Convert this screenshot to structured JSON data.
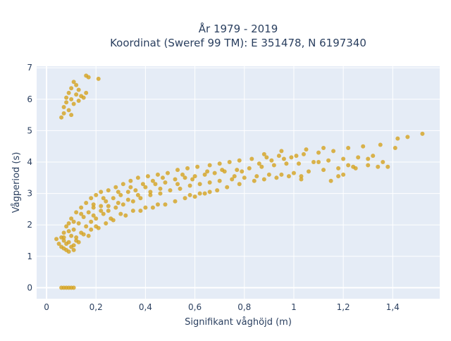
{
  "chart_data": {
    "type": "scatter",
    "title": "År 1979 - 2019",
    "subtitle": "Koordinat (Sweref 99 TM): E 351478, N 6197340",
    "xlabel": "Signifikant våghöjd (m)",
    "ylabel": "Vågperiod (s)",
    "xlim": [
      -0.04,
      1.59
    ],
    "ylim": [
      -0.35,
      7.05
    ],
    "grid": true,
    "x_ticks": [
      0,
      0.2,
      0.4,
      0.6,
      0.8,
      1.0,
      1.2,
      1.4
    ],
    "x_tick_labels": [
      "0",
      "0,2",
      "0,4",
      "0,6",
      "0,8",
      "1",
      "1,2",
      "1,4"
    ],
    "y_ticks": [
      0,
      1,
      2,
      3,
      4,
      5,
      6,
      7
    ],
    "y_tick_labels": [
      "0",
      "1",
      "2",
      "3",
      "4",
      "5",
      "6",
      "7"
    ],
    "marker_color": "#d4a21f",
    "plot_background": "#e5ecf6",
    "series": [
      {
        "points": [
          [
            0.06,
            0.0
          ],
          [
            0.07,
            0.0
          ],
          [
            0.08,
            0.0
          ],
          [
            0.09,
            0.0
          ],
          [
            0.1,
            0.0
          ],
          [
            0.11,
            0.0
          ],
          [
            0.06,
            5.42
          ],
          [
            0.07,
            5.55
          ],
          [
            0.07,
            5.75
          ],
          [
            0.08,
            5.9
          ],
          [
            0.08,
            6.05
          ],
          [
            0.09,
            5.65
          ],
          [
            0.09,
            6.2
          ],
          [
            0.1,
            6.0
          ],
          [
            0.1,
            6.35
          ],
          [
            0.11,
            6.55
          ],
          [
            0.11,
            5.85
          ],
          [
            0.12,
            6.15
          ],
          [
            0.12,
            6.45
          ],
          [
            0.13,
            6.3
          ],
          [
            0.14,
            6.1
          ],
          [
            0.15,
            6.05
          ],
          [
            0.16,
            6.2
          ],
          [
            0.16,
            6.75
          ],
          [
            0.17,
            6.7
          ],
          [
            0.21,
            6.65
          ],
          [
            0.13,
            5.95
          ],
          [
            0.1,
            5.5
          ],
          [
            0.04,
            1.55
          ],
          [
            0.05,
            1.4
          ],
          [
            0.06,
            1.3
          ],
          [
            0.06,
            1.6
          ],
          [
            0.07,
            1.5
          ],
          [
            0.07,
            1.75
          ],
          [
            0.08,
            1.2
          ],
          [
            0.08,
            1.95
          ],
          [
            0.09,
            1.45
          ],
          [
            0.09,
            2.05
          ],
          [
            0.1,
            1.65
          ],
          [
            0.1,
            2.2
          ],
          [
            0.11,
            1.35
          ],
          [
            0.11,
            1.85
          ],
          [
            0.12,
            2.4
          ],
          [
            0.12,
            1.6
          ],
          [
            0.13,
            2.05
          ],
          [
            0.14,
            2.55
          ],
          [
            0.14,
            1.75
          ],
          [
            0.15,
            2.25
          ],
          [
            0.16,
            2.7
          ],
          [
            0.16,
            1.95
          ],
          [
            0.17,
            2.4
          ],
          [
            0.18,
            2.85
          ],
          [
            0.18,
            2.1
          ],
          [
            0.19,
            2.55
          ],
          [
            0.2,
            2.95
          ],
          [
            0.2,
            2.2
          ],
          [
            0.22,
            2.6
          ],
          [
            0.22,
            3.05
          ],
          [
            0.23,
            2.35
          ],
          [
            0.24,
            2.75
          ],
          [
            0.25,
            3.1
          ],
          [
            0.25,
            2.45
          ],
          [
            0.27,
            2.85
          ],
          [
            0.28,
            3.2
          ],
          [
            0.28,
            2.55
          ],
          [
            0.3,
            2.95
          ],
          [
            0.31,
            3.3
          ],
          [
            0.31,
            2.65
          ],
          [
            0.33,
            3.05
          ],
          [
            0.34,
            3.4
          ],
          [
            0.35,
            2.75
          ],
          [
            0.36,
            3.1
          ],
          [
            0.37,
            3.5
          ],
          [
            0.38,
            2.85
          ],
          [
            0.4,
            3.2
          ],
          [
            0.41,
            3.55
          ],
          [
            0.42,
            2.95
          ],
          [
            0.44,
            3.3
          ],
          [
            0.45,
            3.6
          ],
          [
            0.46,
            3.0
          ],
          [
            0.48,
            3.35
          ],
          [
            0.49,
            3.65
          ],
          [
            0.5,
            3.1
          ],
          [
            0.52,
            3.45
          ],
          [
            0.53,
            3.75
          ],
          [
            0.54,
            3.15
          ],
          [
            0.56,
            3.5
          ],
          [
            0.57,
            3.8
          ],
          [
            0.58,
            3.25
          ],
          [
            0.6,
            3.55
          ],
          [
            0.61,
            3.85
          ],
          [
            0.62,
            3.3
          ],
          [
            0.64,
            3.6
          ],
          [
            0.66,
            3.9
          ],
          [
            0.66,
            3.35
          ],
          [
            0.68,
            3.65
          ],
          [
            0.7,
            3.95
          ],
          [
            0.7,
            3.4
          ],
          [
            0.72,
            3.7
          ],
          [
            0.74,
            4.0
          ],
          [
            0.75,
            3.45
          ],
          [
            0.77,
            3.75
          ],
          [
            0.78,
            4.05
          ],
          [
            0.8,
            3.5
          ],
          [
            0.82,
            3.8
          ],
          [
            0.83,
            4.1
          ],
          [
            0.85,
            3.55
          ],
          [
            0.87,
            3.85
          ],
          [
            0.89,
            4.15
          ],
          [
            0.9,
            3.6
          ],
          [
            0.92,
            3.9
          ],
          [
            0.94,
            4.2
          ],
          [
            0.95,
            3.6
          ],
          [
            0.97,
            3.95
          ],
          [
            0.99,
            4.15
          ],
          [
            1.0,
            3.65
          ],
          [
            1.02,
            3.95
          ],
          [
            1.04,
            4.25
          ],
          [
            1.06,
            3.7
          ],
          [
            1.08,
            4.0
          ],
          [
            1.1,
            4.3
          ],
          [
            1.12,
            3.75
          ],
          [
            1.14,
            4.05
          ],
          [
            1.16,
            4.35
          ],
          [
            1.18,
            3.8
          ],
          [
            1.2,
            4.1
          ],
          [
            1.22,
            4.45
          ],
          [
            1.24,
            3.85
          ],
          [
            1.26,
            4.15
          ],
          [
            1.28,
            4.5
          ],
          [
            1.3,
            3.9
          ],
          [
            1.32,
            4.2
          ],
          [
            1.35,
            4.55
          ],
          [
            1.36,
            4.0
          ],
          [
            1.38,
            3.85
          ],
          [
            1.41,
            4.45
          ],
          [
            1.42,
            4.75
          ],
          [
            1.46,
            4.8
          ],
          [
            1.52,
            4.9
          ],
          [
            1.34,
            3.85
          ],
          [
            1.3,
            4.1
          ],
          [
            1.18,
            3.55
          ],
          [
            1.2,
            3.6
          ],
          [
            1.25,
            3.8
          ],
          [
            1.22,
            3.9
          ],
          [
            1.1,
            4.0
          ],
          [
            0.58,
            2.95
          ],
          [
            0.62,
            3.0
          ],
          [
            0.66,
            3.05
          ],
          [
            0.45,
            2.65
          ],
          [
            0.4,
            2.55
          ],
          [
            0.35,
            2.45
          ],
          [
            0.3,
            2.35
          ],
          [
            0.26,
            2.2
          ],
          [
            0.24,
            2.05
          ],
          [
            0.2,
            1.95
          ],
          [
            0.18,
            1.85
          ],
          [
            0.15,
            1.7
          ],
          [
            0.12,
            1.5
          ],
          [
            0.1,
            1.3
          ],
          [
            0.08,
            1.4
          ],
          [
            0.07,
            1.25
          ],
          [
            0.09,
            1.15
          ],
          [
            0.11,
            1.2
          ],
          [
            0.13,
            1.45
          ],
          [
            0.17,
            1.65
          ],
          [
            0.21,
            1.9
          ],
          [
            0.27,
            2.15
          ],
          [
            0.32,
            2.3
          ],
          [
            0.38,
            2.45
          ],
          [
            0.43,
            2.55
          ],
          [
            0.48,
            2.65
          ],
          [
            0.52,
            2.75
          ],
          [
            0.56,
            2.85
          ],
          [
            0.6,
            2.9
          ],
          [
            0.64,
            3.0
          ],
          [
            0.69,
            3.1
          ],
          [
            0.73,
            3.2
          ],
          [
            0.78,
            3.3
          ],
          [
            0.84,
            3.4
          ],
          [
            0.88,
            3.45
          ],
          [
            0.93,
            3.5
          ],
          [
            0.98,
            3.55
          ],
          [
            1.03,
            3.55
          ],
          [
            0.76,
            3.55
          ],
          [
            0.79,
            3.7
          ],
          [
            0.86,
            3.95
          ],
          [
            0.91,
            4.05
          ],
          [
            0.96,
            4.1
          ],
          [
            1.01,
            4.2
          ],
          [
            0.55,
            3.6
          ],
          [
            0.47,
            3.5
          ],
          [
            0.43,
            3.4
          ],
          [
            0.39,
            3.3
          ],
          [
            0.34,
            3.2
          ],
          [
            0.29,
            3.05
          ],
          [
            0.23,
            2.85
          ],
          [
            0.19,
            2.65
          ],
          [
            0.14,
            2.35
          ],
          [
            0.11,
            2.1
          ],
          [
            0.09,
            1.8
          ],
          [
            0.07,
            1.6
          ],
          [
            1.05,
            4.4
          ],
          [
            0.88,
            4.25
          ],
          [
            0.95,
            4.35
          ],
          [
            1.12,
            4.45
          ],
          [
            1.15,
            3.4
          ],
          [
            1.03,
            3.45
          ],
          [
            0.71,
            3.75
          ],
          [
            0.65,
            3.7
          ],
          [
            0.59,
            3.45
          ],
          [
            0.53,
            3.3
          ],
          [
            0.46,
            3.15
          ],
          [
            0.42,
            3.05
          ],
          [
            0.37,
            2.95
          ],
          [
            0.33,
            2.8
          ],
          [
            0.29,
            2.7
          ],
          [
            0.25,
            2.6
          ],
          [
            0.22,
            2.45
          ],
          [
            0.19,
            2.3
          ]
        ]
      }
    ]
  }
}
